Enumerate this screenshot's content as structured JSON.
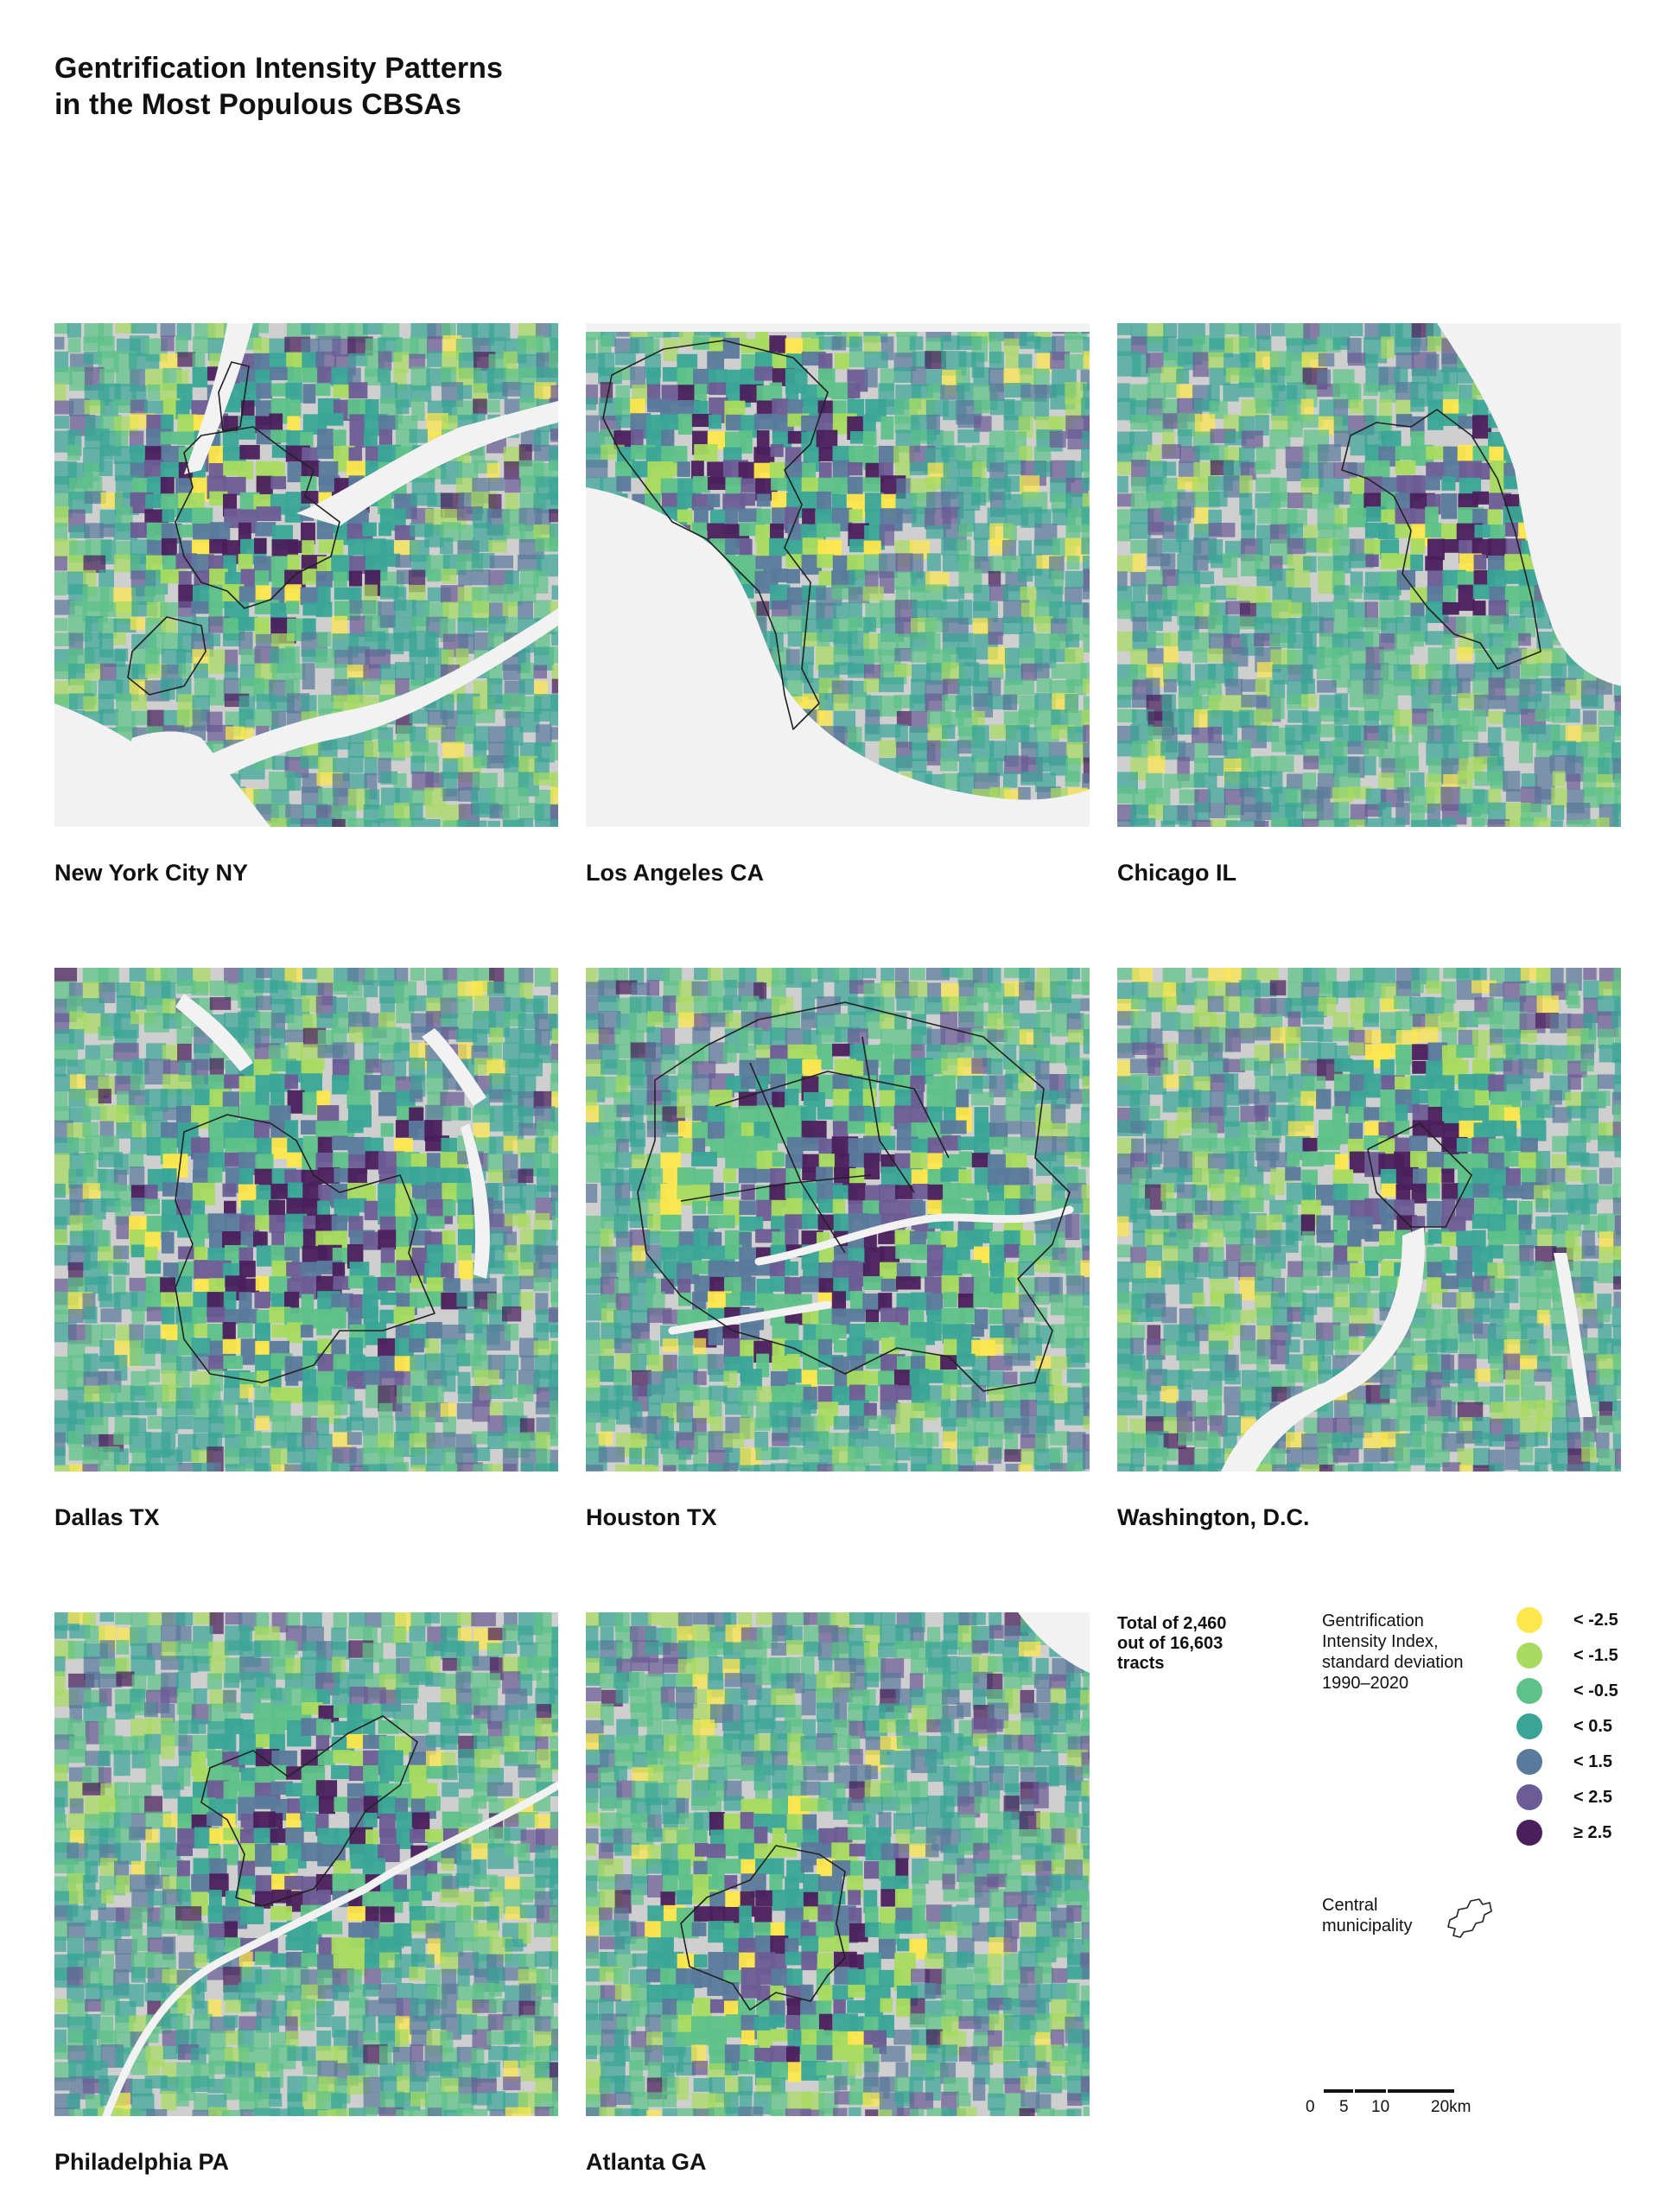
{
  "title": "Gentrification Intensity Patterns\nin the Most Populous CBSAs",
  "panels": [
    {
      "id": "nyc",
      "label": "New York City NY"
    },
    {
      "id": "la",
      "label": "Los Angeles CA"
    },
    {
      "id": "chicago",
      "label": "Chicago IL"
    },
    {
      "id": "dallas",
      "label": "Dallas TX"
    },
    {
      "id": "houston",
      "label": "Houston TX"
    },
    {
      "id": "dc",
      "label": "Washington, D.C."
    },
    {
      "id": "philly",
      "label": "Philadelphia PA"
    },
    {
      "id": "atlanta",
      "label": "Atlanta GA"
    }
  ],
  "total_note": "Total of 2,460 out of 16,603 tracts",
  "legend": {
    "title_lines": [
      "Gentrification",
      "Intensity Index,",
      "standard deviation",
      "1990–2020"
    ],
    "items": [
      {
        "label": "< -2.5",
        "color": "#fde74c"
      },
      {
        "label": "< -1.5",
        "color": "#a8db60"
      },
      {
        "label": "< -0.5",
        "color": "#5ec288"
      },
      {
        "label": "< 0.5",
        "color": "#3aa597"
      },
      {
        "label": "< 1.5",
        "color": "#5a7a9b"
      },
      {
        "label": "< 2.5",
        "color": "#6b5c95"
      },
      {
        "label": "≥ 2.5",
        "color": "#4a1f5c"
      }
    ]
  },
  "central": {
    "label_lines": [
      "Central",
      "municipality"
    ]
  },
  "scale": {
    "ticks": [
      "0",
      "5",
      "10",
      "20km"
    ]
  },
  "colors": {
    "water": "#f2f2f2",
    "land_nodata": "#cfcfcf",
    "outline": "#222222"
  }
}
